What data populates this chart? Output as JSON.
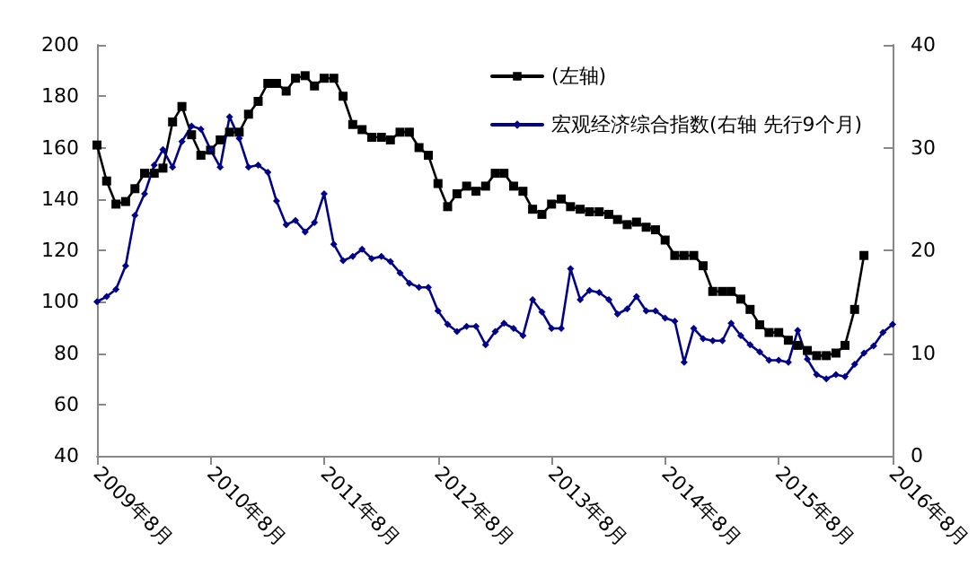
{
  "chart_data": {
    "type": "line",
    "x": [
      "2009-08",
      "2009-09",
      "2009-10",
      "2009-11",
      "2009-12",
      "2010-01",
      "2010-02",
      "2010-03",
      "2010-04",
      "2010-05",
      "2010-06",
      "2010-07",
      "2010-08",
      "2010-09",
      "2010-10",
      "2010-11",
      "2010-12",
      "2011-01",
      "2011-02",
      "2011-03",
      "2011-04",
      "2011-05",
      "2011-06",
      "2011-07",
      "2011-08",
      "2011-09",
      "2011-10",
      "2011-11",
      "2011-12",
      "2012-01",
      "2012-02",
      "2012-03",
      "2012-04",
      "2012-05",
      "2012-06",
      "2012-07",
      "2012-08",
      "2012-09",
      "2012-10",
      "2012-11",
      "2012-12",
      "2013-01",
      "2013-02",
      "2013-03",
      "2013-04",
      "2013-05",
      "2013-06",
      "2013-07",
      "2013-08",
      "2013-09",
      "2013-10",
      "2013-11",
      "2013-12",
      "2014-01",
      "2014-02",
      "2014-03",
      "2014-04",
      "2014-05",
      "2014-06",
      "2014-07",
      "2014-08",
      "2014-09",
      "2014-10",
      "2014-11",
      "2014-12",
      "2015-01",
      "2015-02",
      "2015-03",
      "2015-04",
      "2015-05",
      "2015-06",
      "2015-07",
      "2015-08",
      "2015-09",
      "2015-10",
      "2015-11",
      "2015-12",
      "2016-01",
      "2016-02",
      "2016-03",
      "2016-04",
      "2016-05",
      "2016-06",
      "2016-07",
      "2016-08"
    ],
    "series": [
      {
        "name": "(左轴)",
        "color": "#000000",
        "marker": "square",
        "values": [
          161,
          147,
          138,
          139,
          144,
          150,
          150,
          152,
          170,
          176,
          165,
          157,
          159,
          163,
          166,
          166,
          173,
          178,
          185,
          185,
          182,
          187,
          188,
          184,
          187,
          187,
          180,
          169,
          167,
          164,
          164,
          163,
          166,
          166,
          160,
          157,
          146,
          137,
          142,
          145,
          143,
          145,
          150,
          150,
          145,
          143,
          136,
          134,
          138,
          140,
          137,
          136,
          135,
          135,
          134,
          132,
          130,
          131,
          129,
          128,
          124,
          118,
          118,
          118,
          114,
          104,
          104,
          104,
          101,
          97,
          91,
          88,
          88,
          85,
          83,
          81,
          79,
          79,
          80,
          83,
          97,
          118,
          null,
          null,
          null
        ]
      },
      {
        "name": "宏观经济综合指数(右轴 先行9个月)",
        "color": "#00008b",
        "marker": "diamond",
        "axis": "y2",
        "values": [
          15.0,
          15.5,
          16.2,
          18.5,
          23.4,
          25.5,
          28.3,
          29.8,
          28.1,
          30.6,
          32.1,
          31.8,
          29.8,
          28.1,
          33.0,
          30.9,
          28.1,
          28.3,
          27.6,
          24.8,
          22.5,
          22.9,
          21.8,
          22.7,
          25.5,
          20.6,
          19.0,
          19.4,
          20.1,
          19.2,
          19.4,
          18.9,
          17.8,
          16.8,
          16.4,
          16.4,
          14.1,
          12.8,
          12.1,
          12.6,
          12.6,
          10.8,
          12.1,
          12.9,
          12.4,
          11.7,
          15.2,
          14.0,
          12.4,
          12.4,
          18.2,
          15.2,
          16.1,
          15.9,
          15.2,
          13.8,
          14.3,
          15.5,
          14.1,
          14.1,
          13.4,
          13.1,
          9.1,
          12.4,
          11.4,
          11.2,
          11.2,
          12.9,
          11.7,
          10.8,
          10.1,
          9.3,
          9.3,
          9.1,
          12.2,
          9.4,
          7.9,
          7.5,
          7.9,
          7.7,
          8.9,
          10.0,
          10.7,
          12.0,
          12.8
        ]
      }
    ],
    "xlim": [
      "2009-08",
      "2016-08"
    ],
    "xticks": [
      {
        "value": "2009-08",
        "label": "2009年8月"
      },
      {
        "value": "2010-08",
        "label": "2010年8月"
      },
      {
        "value": "2011-08",
        "label": "2011年8月"
      },
      {
        "value": "2012-08",
        "label": "2012年8月"
      },
      {
        "value": "2013-08",
        "label": "2013年8月"
      },
      {
        "value": "2014-08",
        "label": "2014年8月"
      },
      {
        "value": "2015-08",
        "label": "2015年8月"
      },
      {
        "value": "2016-08",
        "label": "2016年8月"
      }
    ],
    "ylim": [
      40,
      200
    ],
    "yticks": [
      40,
      60,
      80,
      100,
      120,
      140,
      160,
      180,
      200
    ],
    "y2lim": [
      0,
      40
    ],
    "y2ticks": [
      0,
      10,
      20,
      30,
      40
    ],
    "grid": false,
    "legend": "top right",
    "line_style": "solid"
  }
}
